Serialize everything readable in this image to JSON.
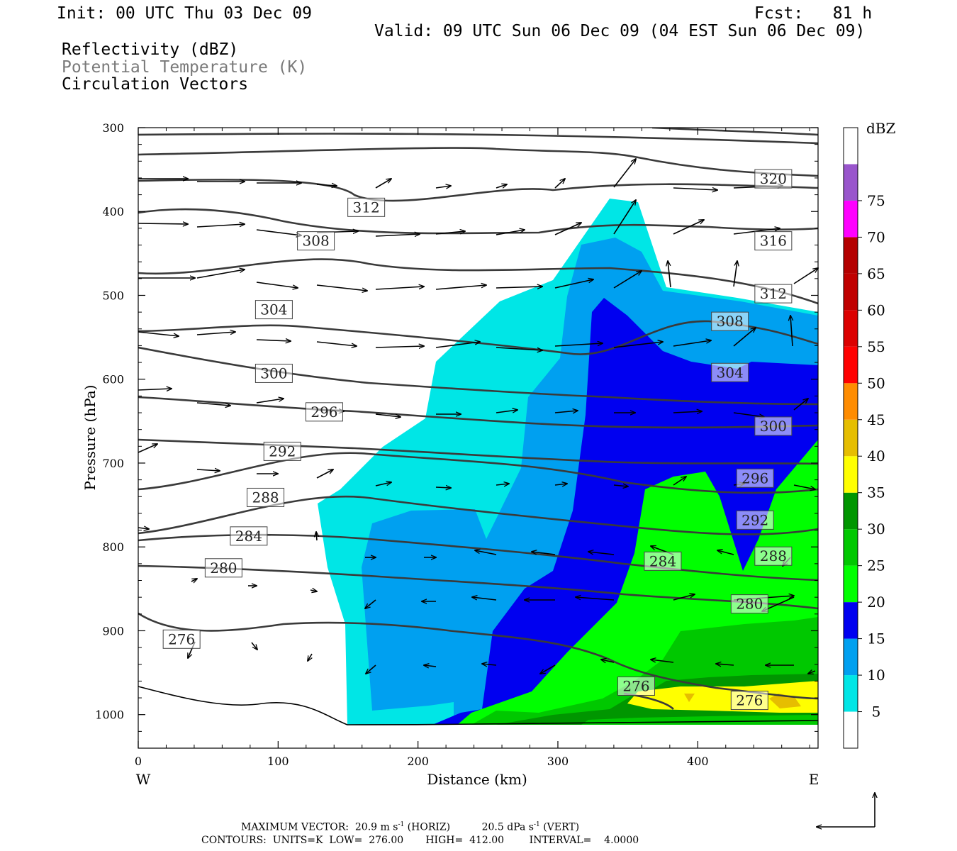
{
  "header": {
    "init": "Init: 00 UTC Thu 03 Dec 09",
    "fcst": "Fcst:   81 h",
    "valid": "Valid: 09 UTC Sun 06 Dec 09 (04 EST Sun 06 Dec 09)",
    "field1": "Reflectivity (dBZ)",
    "field2": "Potential Temperature (K)",
    "field3": "Circulation Vectors"
  },
  "footer": {
    "line1_label": "MAXIMUM VECTOR:",
    "horiz_value": "20.9 m s",
    "horiz_sup": "-1",
    "horiz_tag": "(HORIZ)",
    "vert_value": "20.5 dPa s",
    "vert_sup": "-1",
    "vert_tag": "(VERT)",
    "line2": "CONTOURS:  UNITS=K  LOW=  276.00       HIGH=  412.00        INTERVAL=    4.0000"
  },
  "colors": {
    "c5": "#00e6e6",
    "c10": "#00a0f0",
    "c15": "#0000f0",
    "c20": "#00ff00",
    "c25": "#00c800",
    "c30": "#009600",
    "c35": "#ffff00",
    "c40": "#e6be00",
    "c45": "#ff8c00",
    "c50": "#ff0000",
    "c55": "#dc0000",
    "c60": "#c00000",
    "c65": "#b40000",
    "c70": "#ff00ff",
    "c75": "#9955cc",
    "contour": "#3a3a3a"
  },
  "chart_data": {
    "type": "cross-section",
    "xlabel": "Distance (km)",
    "ylabel": "Pressure (hPa)",
    "x_ticks": [
      "0",
      "100",
      "200",
      "300",
      "400"
    ],
    "x_tick_values": [
      0,
      100,
      200,
      300,
      400
    ],
    "y_ticks": [
      "300",
      "400",
      "500",
      "600",
      "700",
      "800",
      "900",
      "1000"
    ],
    "y_tick_values": [
      300,
      400,
      500,
      600,
      700,
      800,
      900,
      1000
    ],
    "xlim": [
      0,
      486
    ],
    "ylim": [
      1040,
      300
    ],
    "x_end_labels": {
      "left": "W",
      "right": "E"
    },
    "colorbar": {
      "unit": "dBZ",
      "labels": [
        "5",
        "10",
        "15",
        "20",
        "25",
        "30",
        "35",
        "40",
        "45",
        "50",
        "55",
        "60",
        "65",
        "70",
        "75"
      ],
      "levels": [
        5,
        10,
        15,
        20,
        25,
        30,
        35,
        40,
        45,
        50,
        55,
        60,
        65,
        70,
        75
      ]
    },
    "theta_contour_labels": [
      {
        "text": "312",
        "x": 163,
        "p": 395
      },
      {
        "text": "320",
        "x": 454,
        "p": 361
      },
      {
        "text": "308",
        "x": 127,
        "p": 435
      },
      {
        "text": "316",
        "x": 454,
        "p": 435
      },
      {
        "text": "304",
        "x": 97,
        "p": 517
      },
      {
        "text": "312",
        "x": 454,
        "p": 498
      },
      {
        "text": "308",
        "x": 423,
        "p": 531
      },
      {
        "text": "300",
        "x": 97,
        "p": 593
      },
      {
        "text": "304",
        "x": 423,
        "p": 592
      },
      {
        "text": "296",
        "x": 133,
        "p": 639
      },
      {
        "text": "300",
        "x": 454,
        "p": 656
      },
      {
        "text": "292",
        "x": 103,
        "p": 686
      },
      {
        "text": "296",
        "x": 441,
        "p": 718
      },
      {
        "text": "288",
        "x": 91,
        "p": 741
      },
      {
        "text": "292",
        "x": 441,
        "p": 768
      },
      {
        "text": "284",
        "x": 79,
        "p": 787
      },
      {
        "text": "288",
        "x": 454,
        "p": 811
      },
      {
        "text": "284",
        "x": 375,
        "p": 817
      },
      {
        "text": "280",
        "x": 61,
        "p": 825
      },
      {
        "text": "280",
        "x": 437,
        "p": 868
      },
      {
        "text": "276",
        "x": 31,
        "p": 910
      },
      {
        "text": "276",
        "x": 356,
        "p": 966
      },
      {
        "text": "276",
        "x": 437,
        "p": 983
      }
    ]
  }
}
